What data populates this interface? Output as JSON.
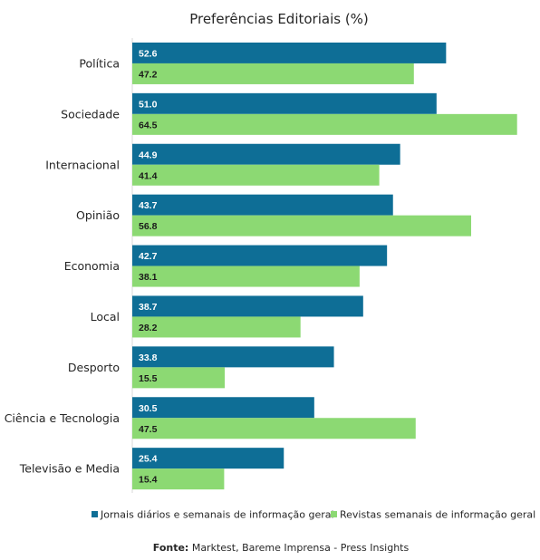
{
  "chart_data": {
    "type": "bar",
    "orientation": "horizontal",
    "title": "Preferências Editoriais (%)",
    "categories": [
      "Política",
      "Sociedade",
      "Internacional",
      "Opinião",
      "Economia",
      "Local",
      "Desporto",
      "Ciência e Tecnologia",
      "Televisão e Media"
    ],
    "series": [
      {
        "name": "Jornais diários e semanais de informação geral",
        "color": "#0e6e96",
        "label_color": "#ffffff",
        "values": [
          52.6,
          51.0,
          44.9,
          43.7,
          42.7,
          38.7,
          33.8,
          30.5,
          25.4
        ]
      },
      {
        "name": "Revistas semanais de informação geral",
        "color": "#8cd973",
        "label_color": "#1a1a1a",
        "values": [
          47.2,
          64.5,
          41.4,
          56.8,
          38.1,
          28.2,
          15.5,
          47.5,
          15.4
        ]
      }
    ],
    "xlim": [
      0,
      65
    ],
    "grid": false,
    "legend_position": "bottom",
    "data_labels": true
  },
  "source": {
    "label": "Fonte:",
    "text": " Marktest, Bareme Imprensa - Press Insights"
  }
}
